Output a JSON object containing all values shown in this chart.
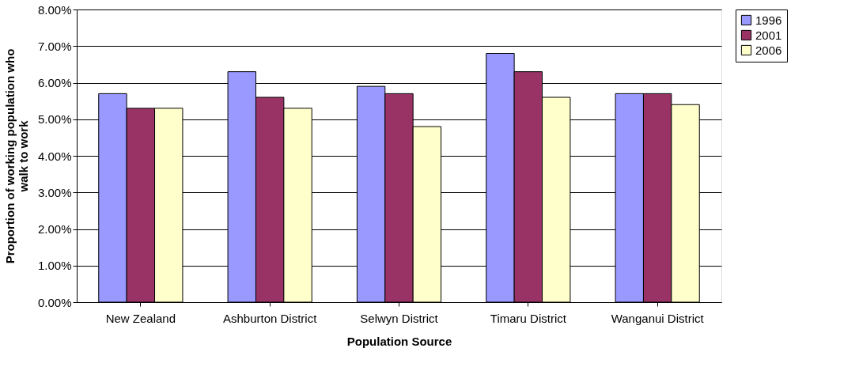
{
  "chart_data": {
    "type": "bar",
    "xlabel": "Population Source",
    "ylabel": "Proportion of working population who walk to work",
    "categories": [
      "New Zealand",
      "Ashburton District",
      "Selwyn District",
      "Timaru District",
      "Wanganui District"
    ],
    "series": [
      {
        "name": "1996",
        "color": "#9999ff",
        "values": [
          5.7,
          6.3,
          5.9,
          6.8,
          5.7
        ]
      },
      {
        "name": "2001",
        "color": "#993366",
        "values": [
          5.3,
          5.6,
          5.7,
          6.3,
          5.7
        ]
      },
      {
        "name": "2006",
        "color": "#ffffcc",
        "values": [
          5.3,
          5.3,
          4.8,
          5.6,
          5.4
        ]
      }
    ],
    "ylim": [
      0,
      8
    ],
    "yticks": [
      {
        "value": 0,
        "label": "0.00%"
      },
      {
        "value": 1,
        "label": "1.00%"
      },
      {
        "value": 2,
        "label": "2.00%"
      },
      {
        "value": 3,
        "label": "3.00%"
      },
      {
        "value": 4,
        "label": "4.00%"
      },
      {
        "value": 5,
        "label": "5.00%"
      },
      {
        "value": 6,
        "label": "6.00%"
      },
      {
        "value": 7,
        "label": "7.00%"
      },
      {
        "value": 8,
        "label": "8.00%"
      }
    ],
    "grid": "y",
    "legend": "right"
  }
}
